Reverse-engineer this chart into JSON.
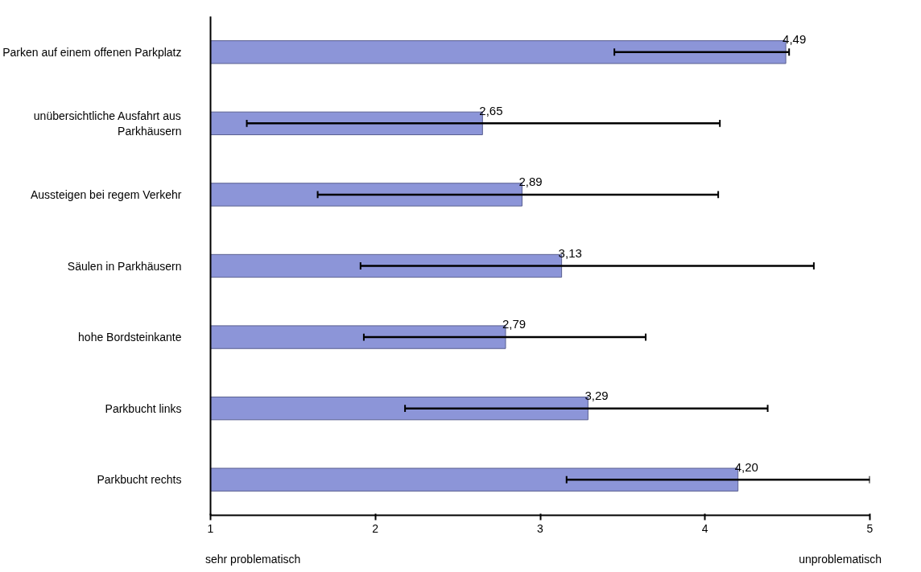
{
  "chart_data": {
    "type": "bar",
    "orientation": "horizontal",
    "categories": [
      "Parken auf einem offenen Parkplatz",
      "unübersichtliche Ausfahrt aus Parkhäusern",
      "Aussteigen bei regem Verkehr",
      "Säulen in Parkhäusern",
      "hohe Bordsteinkante",
      "Parkbucht links",
      "Parkbucht rechts"
    ],
    "values": [
      4.49,
      2.65,
      2.89,
      3.13,
      2.79,
      3.29,
      4.2
    ],
    "value_labels": [
      "4,49",
      "2,65",
      "2,89",
      "3,13",
      "2,79",
      "3,29",
      "4,20"
    ],
    "errors": [
      [
        3.45,
        4.51
      ],
      [
        1.22,
        4.09
      ],
      [
        1.65,
        4.08
      ],
      [
        1.91,
        4.66
      ],
      [
        1.93,
        3.64
      ],
      [
        2.18,
        4.38
      ],
      [
        3.16,
        5.0
      ]
    ],
    "color": "#8c95d8",
    "xlim": [
      1,
      5
    ],
    "xticks": [
      1,
      2,
      3,
      4,
      5
    ],
    "grid": false,
    "annotations": [
      "sehr problematisch",
      "unproblematisch"
    ]
  }
}
